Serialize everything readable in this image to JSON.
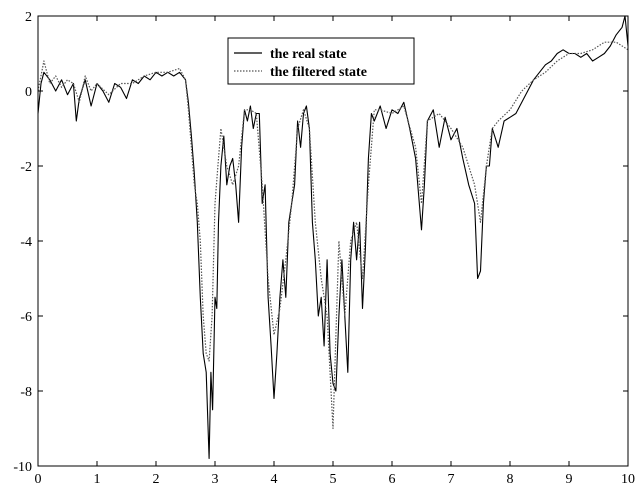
{
  "chart_data": {
    "type": "line",
    "title": "",
    "xlabel": "",
    "ylabel": "",
    "xlim": [
      0,
      10
    ],
    "ylim": [
      -10,
      2
    ],
    "xticks": [
      0,
      1,
      2,
      3,
      4,
      5,
      6,
      7,
      8,
      9,
      10
    ],
    "yticks": [
      2,
      0,
      -2,
      -4,
      -6,
      -8,
      -10
    ],
    "grid": false,
    "legend_position": "top-center",
    "series": [
      {
        "name": "the real state",
        "style": "solid",
        "color": "#000000",
        "x": [
          0,
          0.05,
          0.1,
          0.2,
          0.3,
          0.4,
          0.5,
          0.6,
          0.65,
          0.7,
          0.8,
          0.9,
          1.0,
          1.1,
          1.2,
          1.3,
          1.4,
          1.5,
          1.6,
          1.7,
          1.8,
          1.9,
          2.0,
          2.1,
          2.2,
          2.3,
          2.4,
          2.5,
          2.55,
          2.6,
          2.65,
          2.7,
          2.75,
          2.8,
          2.85,
          2.9,
          2.93,
          2.96,
          3.0,
          3.03,
          3.06,
          3.1,
          3.15,
          3.2,
          3.25,
          3.3,
          3.35,
          3.4,
          3.45,
          3.5,
          3.55,
          3.6,
          3.65,
          3.7,
          3.75,
          3.8,
          3.85,
          3.9,
          3.95,
          4.0,
          4.05,
          4.1,
          4.15,
          4.2,
          4.25,
          4.3,
          4.35,
          4.4,
          4.45,
          4.5,
          4.55,
          4.6,
          4.65,
          4.7,
          4.75,
          4.8,
          4.85,
          4.9,
          4.95,
          5.0,
          5.05,
          5.1,
          5.15,
          5.2,
          5.25,
          5.3,
          5.35,
          5.4,
          5.45,
          5.5,
          5.55,
          5.6,
          5.65,
          5.7,
          5.8,
          5.9,
          6.0,
          6.1,
          6.2,
          6.3,
          6.4,
          6.5,
          6.55,
          6.6,
          6.7,
          6.8,
          6.9,
          7.0,
          7.1,
          7.2,
          7.3,
          7.4,
          7.45,
          7.5,
          7.55,
          7.6,
          7.65,
          7.7,
          7.8,
          7.9,
          8.0,
          8.1,
          8.2,
          8.3,
          8.4,
          8.5,
          8.6,
          8.7,
          8.8,
          8.9,
          9.0,
          9.1,
          9.2,
          9.3,
          9.4,
          9.5,
          9.6,
          9.7,
          9.8,
          9.9,
          9.95,
          10.0
        ],
        "y": [
          -0.6,
          0.2,
          0.5,
          0.3,
          0.0,
          0.3,
          -0.1,
          0.2,
          -0.8,
          -0.2,
          0.3,
          -0.4,
          0.2,
          0.0,
          -0.3,
          0.2,
          0.1,
          -0.2,
          0.3,
          0.2,
          0.4,
          0.3,
          0.5,
          0.4,
          0.5,
          0.4,
          0.5,
          0.3,
          -0.3,
          -1.2,
          -2.2,
          -3.5,
          -5.5,
          -7.0,
          -7.5,
          -9.8,
          -7.5,
          -8.5,
          -5.5,
          -5.8,
          -3.5,
          -2.0,
          -1.2,
          -2.5,
          -2.0,
          -1.8,
          -2.5,
          -3.5,
          -1.5,
          -0.5,
          -0.8,
          -0.4,
          -1.0,
          -0.6,
          -0.6,
          -3.0,
          -2.5,
          -5.5,
          -6.8,
          -8.2,
          -7.0,
          -5.5,
          -4.5,
          -5.5,
          -3.5,
          -3.0,
          -2.5,
          -0.8,
          -1.5,
          -0.6,
          -0.4,
          -1.0,
          -3.5,
          -4.5,
          -6.0,
          -5.5,
          -6.8,
          -4.5,
          -7.0,
          -7.8,
          -8.0,
          -6.0,
          -4.5,
          -6.0,
          -7.5,
          -4.5,
          -3.5,
          -4.5,
          -3.5,
          -5.8,
          -4.2,
          -1.8,
          -0.6,
          -0.8,
          -0.4,
          -1.0,
          -0.5,
          -0.6,
          -0.3,
          -1.0,
          -1.8,
          -3.7,
          -2.5,
          -0.8,
          -0.5,
          -1.5,
          -0.7,
          -1.3,
          -1.0,
          -1.8,
          -2.5,
          -3.0,
          -5.0,
          -4.8,
          -3.0,
          -2.0,
          -2.0,
          -1.0,
          -1.5,
          -0.8,
          -0.7,
          -0.6,
          -0.3,
          0.0,
          0.3,
          0.5,
          0.7,
          0.8,
          1.0,
          1.1,
          1.0,
          1.0,
          0.9,
          1.0,
          0.8,
          0.9,
          1.0,
          1.2,
          1.5,
          1.7,
          2.0,
          1.2
        ]
      },
      {
        "name": "the filtered state",
        "style": "dotted",
        "color": "#555555",
        "x": [
          0,
          0.1,
          0.2,
          0.3,
          0.4,
          0.5,
          0.6,
          0.7,
          0.8,
          0.9,
          1.0,
          1.2,
          1.4,
          1.6,
          1.8,
          2.0,
          2.2,
          2.4,
          2.5,
          2.55,
          2.6,
          2.65,
          2.7,
          2.75,
          2.8,
          2.85,
          2.9,
          2.95,
          3.0,
          3.05,
          3.1,
          3.15,
          3.2,
          3.3,
          3.4,
          3.5,
          3.6,
          3.7,
          3.8,
          3.9,
          4.0,
          4.1,
          4.2,
          4.3,
          4.4,
          4.5,
          4.6,
          4.7,
          4.8,
          4.9,
          5.0,
          5.05,
          5.1,
          5.2,
          5.3,
          5.4,
          5.5,
          5.6,
          5.7,
          5.8,
          6.0,
          6.2,
          6.4,
          6.5,
          6.6,
          6.8,
          7.0,
          7.2,
          7.4,
          7.5,
          7.6,
          7.7,
          7.8,
          8.0,
          8.2,
          8.4,
          8.6,
          8.8,
          9.0,
          9.2,
          9.4,
          9.6,
          9.8,
          10.0
        ],
        "y": [
          0.0,
          0.8,
          0.2,
          0.4,
          0.1,
          0.3,
          0.2,
          -0.3,
          0.4,
          0.0,
          0.2,
          -0.1,
          0.2,
          0.2,
          0.4,
          0.5,
          0.5,
          0.6,
          0.3,
          -0.5,
          -1.5,
          -2.5,
          -3.0,
          -4.0,
          -6.0,
          -7.0,
          -7.2,
          -6.0,
          -3.0,
          -2.0,
          -1.0,
          -1.5,
          -2.0,
          -2.5,
          -2.0,
          -0.5,
          -0.5,
          -0.6,
          -2.5,
          -5.0,
          -6.5,
          -5.8,
          -4.5,
          -3.0,
          -1.0,
          -0.5,
          -1.0,
          -3.5,
          -5.0,
          -6.0,
          -9.0,
          -6.5,
          -4.0,
          -6.0,
          -4.0,
          -3.5,
          -5.0,
          -2.5,
          -0.5,
          -0.5,
          -0.6,
          -0.4,
          -1.5,
          -3.0,
          -0.8,
          -0.6,
          -1.0,
          -1.5,
          -2.5,
          -3.5,
          -2.0,
          -1.0,
          -0.8,
          -0.5,
          0.0,
          0.3,
          0.5,
          0.8,
          1.0,
          1.0,
          1.1,
          1.3,
          1.3,
          1.1
        ]
      }
    ]
  }
}
